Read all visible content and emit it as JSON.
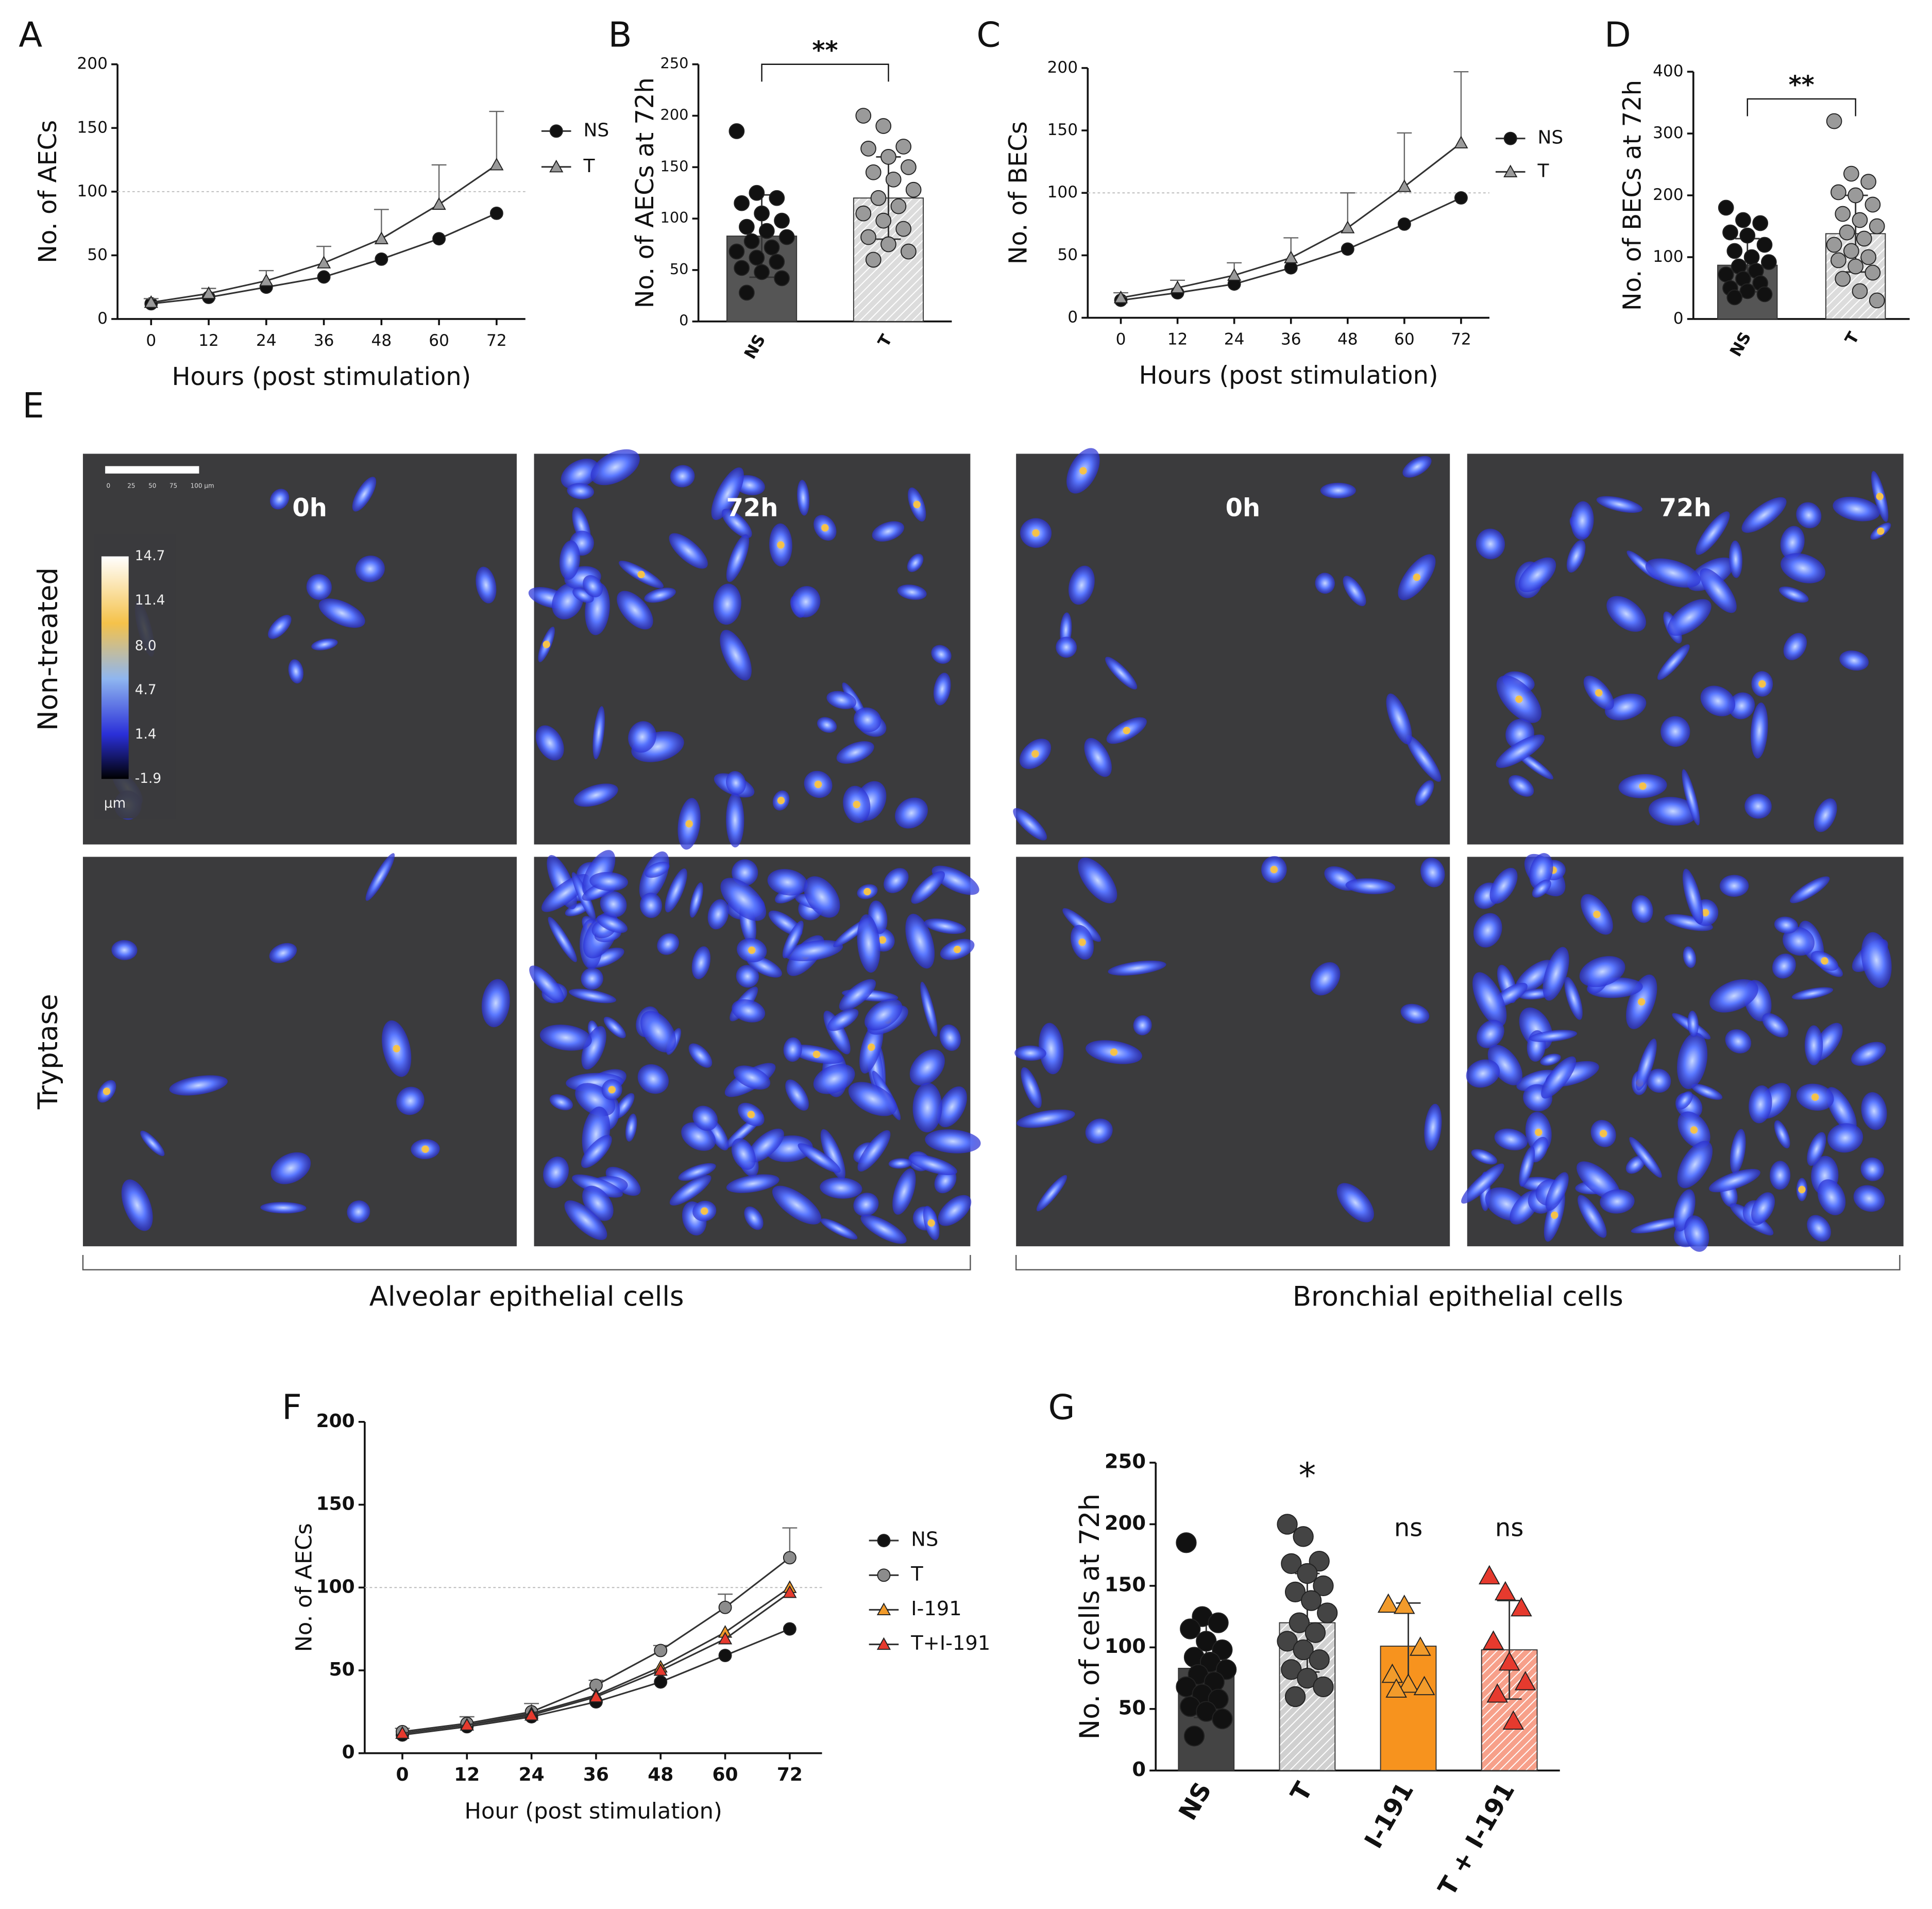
{
  "chart_data": [
    {
      "panel_label": "A",
      "type": "line",
      "x": [
        0,
        12,
        24,
        36,
        48,
        60,
        72
      ],
      "xlim": [
        -7,
        78
      ],
      "xticks": [
        0,
        12,
        24,
        36,
        48,
        60,
        72
      ],
      "ylim": [
        0,
        200
      ],
      "yticks": [
        0,
        50,
        100,
        150,
        200
      ],
      "reference_line": 100,
      "xlabel": "Hours (post stimulation)",
      "ylabel": "No. of AECs",
      "series": [
        {
          "name": "NS",
          "color": "#111111",
          "marker": "circle",
          "values": [
            12,
            17,
            25,
            33,
            47,
            63,
            83
          ]
        },
        {
          "name": "T",
          "color": "#9a9a9a",
          "marker": "triangle",
          "values": [
            13,
            20,
            30,
            44,
            63,
            90,
            121
          ],
          "errors": [
            3,
            4,
            8,
            13,
            23,
            31,
            42
          ]
        }
      ]
    },
    {
      "panel_label": "B",
      "type": "bar",
      "categories": [
        "NS",
        "T"
      ],
      "values": [
        83,
        120
      ],
      "errors": [
        40,
        40
      ],
      "colors": [
        "#555555",
        "#dcdcdc"
      ],
      "hatch": [
        false,
        true
      ],
      "point_colors": [
        "#111111",
        "#9a9a9a"
      ],
      "point_markers": [
        "circle",
        "circle"
      ],
      "points": [
        [
          185,
          125,
          120,
          115,
          105,
          98,
          92,
          88,
          82,
          78,
          72,
          68,
          62,
          58,
          52,
          48,
          42,
          28
        ],
        [
          200,
          190,
          170,
          168,
          160,
          150,
          145,
          138,
          128,
          120,
          112,
          105,
          98,
          90,
          82,
          75,
          68,
          60
        ]
      ],
      "ylim": [
        0,
        250
      ],
      "yticks": [
        0,
        50,
        100,
        150,
        200,
        250
      ],
      "ylabel": "No. of AECs at 72h",
      "significance": "**"
    },
    {
      "panel_label": "C",
      "type": "line",
      "x": [
        0,
        12,
        24,
        36,
        48,
        60,
        72
      ],
      "xlim": [
        -7,
        78
      ],
      "xticks": [
        0,
        12,
        24,
        36,
        48,
        60,
        72
      ],
      "ylim": [
        0,
        200
      ],
      "yticks": [
        0,
        50,
        100,
        150,
        200
      ],
      "reference_line": 100,
      "xlabel": "Hours (post stimulation)",
      "ylabel": "No. of BECs",
      "series": [
        {
          "name": "NS",
          "color": "#111111",
          "marker": "circle",
          "values": [
            14,
            20,
            27,
            40,
            55,
            75,
            96
          ]
        },
        {
          "name": "T",
          "color": "#9a9a9a",
          "marker": "triangle",
          "values": [
            16,
            24,
            34,
            48,
            72,
            105,
            140
          ],
          "errors": [
            4,
            6,
            10,
            16,
            28,
            43,
            57
          ]
        }
      ]
    },
    {
      "panel_label": "D",
      "type": "bar",
      "categories": [
        "NS",
        "T"
      ],
      "values": [
        87,
        138
      ],
      "errors": [
        43,
        62
      ],
      "colors": [
        "#555555",
        "#dcdcdc"
      ],
      "hatch": [
        false,
        true
      ],
      "point_colors": [
        "#111111",
        "#9a9a9a"
      ],
      "point_markers": [
        "circle",
        "circle"
      ],
      "points": [
        [
          180,
          160,
          155,
          140,
          135,
          120,
          110,
          100,
          92,
          85,
          78,
          72,
          65,
          58,
          50,
          45,
          40,
          35
        ],
        [
          320,
          235,
          222,
          205,
          200,
          185,
          170,
          160,
          150,
          140,
          130,
          120,
          110,
          100,
          95,
          85,
          75,
          65,
          45,
          30
        ]
      ],
      "ylim": [
        0,
        400
      ],
      "yticks": [
        0,
        100,
        200,
        300,
        400
      ],
      "ylabel": "No. of BECs at 72h",
      "significance": "**"
    },
    {
      "panel_label": "F",
      "type": "line",
      "x": [
        0,
        12,
        24,
        36,
        48,
        60,
        72
      ],
      "xlim": [
        -7,
        78
      ],
      "xticks": [
        0,
        12,
        24,
        36,
        48,
        60,
        72
      ],
      "ylim": [
        0,
        200
      ],
      "yticks": [
        0,
        50,
        100,
        150,
        200
      ],
      "reference_line": 100,
      "xlabel": "Hour (post stimulation)",
      "ylabel": "No. of AECs",
      "series": [
        {
          "name": "NS",
          "color": "#111111",
          "marker": "circle",
          "values": [
            11,
            16,
            22,
            31,
            43,
            59,
            75
          ]
        },
        {
          "name": "T",
          "color": "#8c8c8c",
          "marker": "circle",
          "values": [
            13,
            18,
            25,
            41,
            62,
            88,
            118
          ],
          "errors": [
            2,
            4,
            5,
            3,
            3,
            8,
            18
          ]
        },
        {
          "name": "I-191",
          "color": "#f29b2b",
          "marker": "triangle",
          "values": [
            12,
            17,
            24,
            35,
            52,
            73,
            100
          ]
        },
        {
          "name": "T+I-191",
          "color": "#e63a2e",
          "marker": "triangle",
          "values": [
            12,
            17,
            23,
            34,
            50,
            69,
            97
          ]
        }
      ]
    },
    {
      "panel_label": "G",
      "type": "bar",
      "categories": [
        "NS",
        "T",
        "I-191",
        "T + I-191"
      ],
      "values": [
        83,
        120,
        101,
        98
      ],
      "errors": [
        40,
        40,
        35,
        40
      ],
      "colors": [
        "#444444",
        "#d0d0d0",
        "#f7931e",
        "#f7a08a"
      ],
      "hatch": [
        false,
        true,
        false,
        true
      ],
      "point_colors": [
        "#111111",
        "#444444",
        "#f29b2b",
        "#e63a2e"
      ],
      "point_markers": [
        "circle",
        "circle",
        "triangle",
        "triangle"
      ],
      "points": [
        [
          185,
          125,
          120,
          115,
          105,
          98,
          92,
          88,
          82,
          78,
          72,
          68,
          62,
          58,
          52,
          48,
          42,
          28
        ],
        [
          200,
          190,
          170,
          168,
          160,
          150,
          145,
          138,
          128,
          120,
          112,
          105,
          98,
          90,
          82,
          75,
          68,
          60
        ],
        [
          135,
          134,
          100,
          78,
          70,
          68,
          66
        ],
        [
          158,
          145,
          132,
          105,
          88,
          72,
          62,
          40
        ]
      ],
      "annotations": [
        null,
        "*",
        "ns",
        "ns"
      ],
      "ylim": [
        0,
        250
      ],
      "yticks": [
        0,
        50,
        100,
        150,
        200,
        250
      ],
      "ylabel": "No. of cells at 72h"
    }
  ],
  "image_panel": {
    "label": "E",
    "columns": [
      "0h",
      "72h",
      "0h",
      "72h"
    ],
    "rows": [
      "Non-treated",
      "Tryptase"
    ],
    "groups": [
      "Alveolar epithelial cells",
      "Bronchial epithelial cells"
    ],
    "colorbar": {
      "lim": [
        -1.9,
        14.7
      ],
      "ticks": [
        14.7,
        11.4,
        {
          "value": 8,
          "label": "8.0"
        },
        4.7,
        1.4,
        -1.9
      ],
      "unit": "µm"
    },
    "scale_bar_ticks": [
      "0",
      "25",
      "50",
      "75",
      "100 µm"
    ]
  }
}
